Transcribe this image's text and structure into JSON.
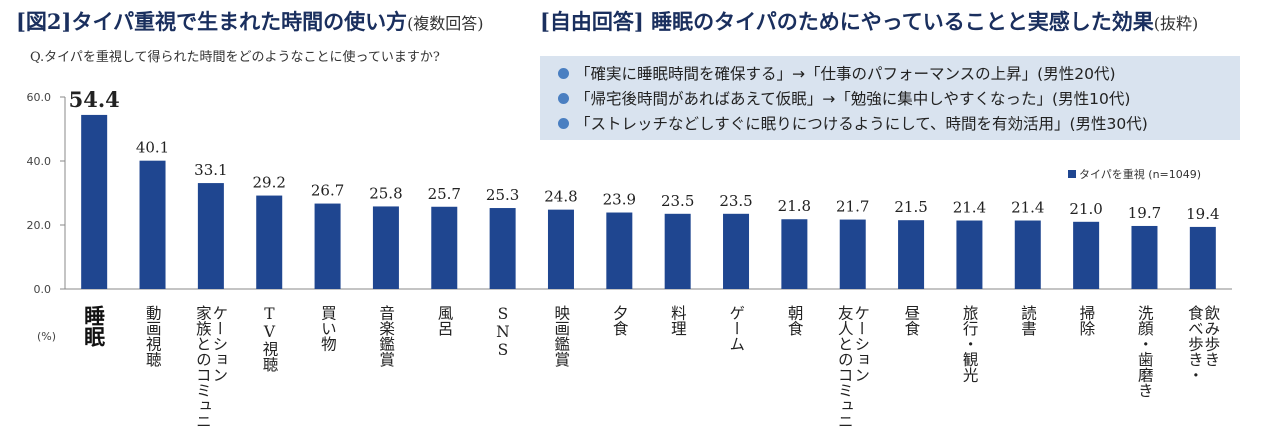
{
  "figure": {
    "title_main": "[図2]タイパ重視で生まれた時間の使い方",
    "title_sub": "(複数回答)",
    "question": "Q.タイパを重視して得られた時間をどのようなことに使っていますか?"
  },
  "free_answers": {
    "title_main": "[自由回答]  睡眠のタイパのためにやっていることと実感した効果",
    "title_sub": "(抜粋)",
    "items": [
      "「確実に睡眠時間を確保する」→「仕事のパフォーマンスの上昇」(男性20代)",
      "「帰宅後時間があればあえて仮眠」→「勉強に集中しやすくなった」(男性10代)",
      "「ストレッチなどしすぐに眠りにつけるようにして、時間を有効活用」(男性30代)"
    ],
    "bullet_color": "#4a7fc1",
    "box_color": "#d9e3ef"
  },
  "chart_data": {
    "type": "bar",
    "title": "",
    "xlabel": "",
    "ylabel": "",
    "unit_label": "(%)",
    "ylim": [
      0,
      60
    ],
    "yticks": [
      "0.0",
      "20.0",
      "40.0",
      "60.0"
    ],
    "legend": "タイパを重視 (n=1049)",
    "legend_position": "right",
    "bar_color": "#1f4690",
    "categories": [
      "睡眠",
      "動画視聴",
      "家族とのコミュニケーション",
      "TV視聴",
      "買い物",
      "音楽鑑賞",
      "風呂",
      "SNS",
      "映画鑑賞",
      "夕食",
      "料理",
      "ゲーム",
      "朝食",
      "友人とのコミュニケーション",
      "昼食",
      "旅行・観光",
      "読書",
      "掃除",
      "洗顔・歯磨き",
      "食べ歩き・飲み歩き"
    ],
    "values": [
      54.4,
      40.1,
      33.1,
      29.2,
      26.7,
      25.8,
      25.7,
      25.3,
      24.8,
      23.9,
      23.5,
      23.5,
      21.8,
      21.7,
      21.5,
      21.4,
      21.4,
      21.0,
      19.7,
      19.4
    ],
    "value_labels": [
      "54.4",
      "40.1",
      "33.1",
      "29.2",
      "26.7",
      "25.8",
      "25.7",
      "25.3",
      "24.8",
      "23.9",
      "23.5",
      "23.5",
      "21.8",
      "21.7",
      "21.5",
      "21.4",
      "21.4",
      "21.0",
      "19.7",
      "19.4"
    ],
    "category_columns": [
      [
        "睡眠"
      ],
      [
        "動画視聴"
      ],
      [
        "ケーション",
        "家族とのコミュニ"
      ],
      [
        "TV視聴"
      ],
      [
        "買い物"
      ],
      [
        "音楽鑑賞"
      ],
      [
        "風呂"
      ],
      [
        "SNS"
      ],
      [
        "映画鑑賞"
      ],
      [
        "夕食"
      ],
      [
        "料理"
      ],
      [
        "ゲーム"
      ],
      [
        "朝食"
      ],
      [
        "ケーション",
        "友人とのコミュニ"
      ],
      [
        "昼食"
      ],
      [
        "旅行・観光"
      ],
      [
        "読書"
      ],
      [
        "掃除"
      ],
      [
        "洗顔・歯磨き"
      ],
      [
        "飲み歩き",
        "食べ歩き・"
      ]
    ],
    "highlight_index": 0
  }
}
